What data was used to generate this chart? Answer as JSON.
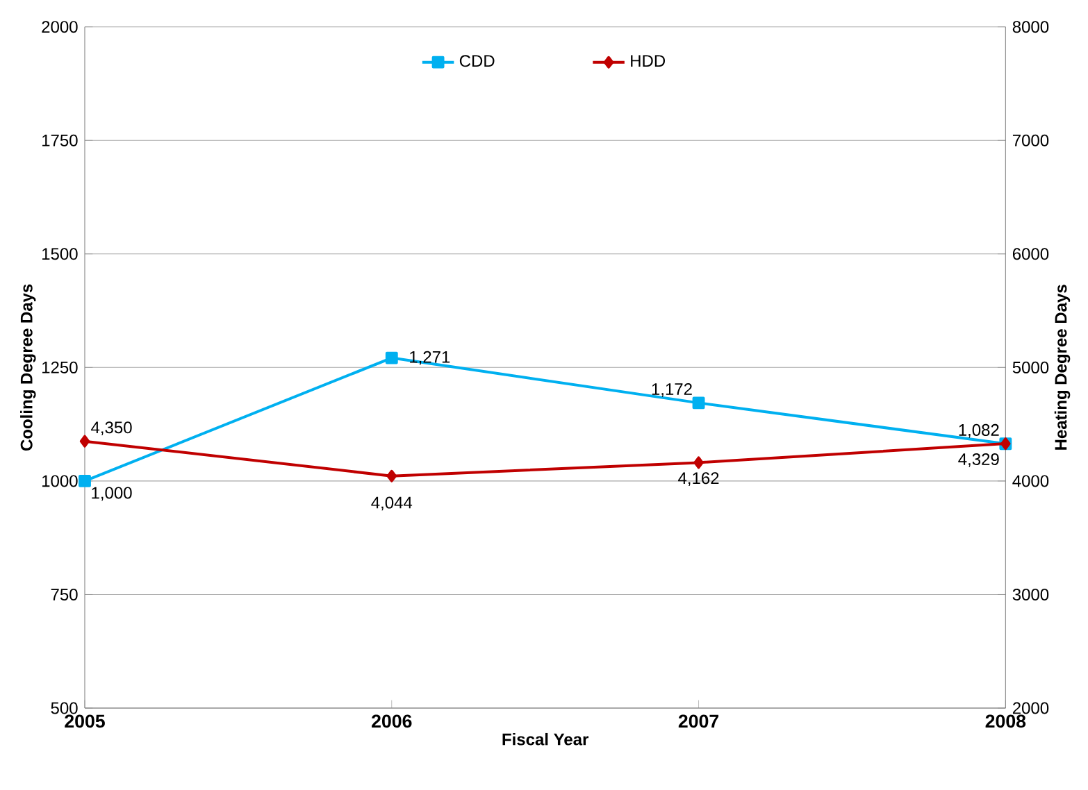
{
  "chart_data": {
    "type": "line",
    "xlabel": "Fiscal Year",
    "ylabel": "Cooling Degree Days",
    "y2label": "Heating Degree Days",
    "x": [
      2005,
      2006,
      2007,
      2008
    ],
    "xlim": [
      2005,
      2008
    ],
    "xticks": [
      2005,
      2006,
      2007,
      2008
    ],
    "ylim": [
      500,
      2000
    ],
    "yticks": [
      500,
      750,
      1000,
      1250,
      1500,
      1750,
      2000
    ],
    "y2lim": [
      2000,
      8000
    ],
    "y2ticks": [
      2000,
      3000,
      4000,
      5000,
      6000,
      7000,
      8000
    ],
    "series": [
      {
        "name": "CDD",
        "color": "#00b0f0",
        "marker": "square",
        "values": [
          1000,
          1271,
          1172,
          1082
        ],
        "value_labels": [
          "1,000",
          "1,271",
          "1,172",
          "1,082"
        ]
      },
      {
        "name": "HDD",
        "color": "#c00000",
        "marker": "diamond",
        "axis": "y2",
        "values": [
          4350,
          4044,
          4162,
          4329
        ],
        "value_labels": [
          "4,350",
          "4,044",
          "4,162",
          "4,329"
        ]
      }
    ],
    "grid": "y",
    "legend": "top",
    "line_style": "solid"
  }
}
